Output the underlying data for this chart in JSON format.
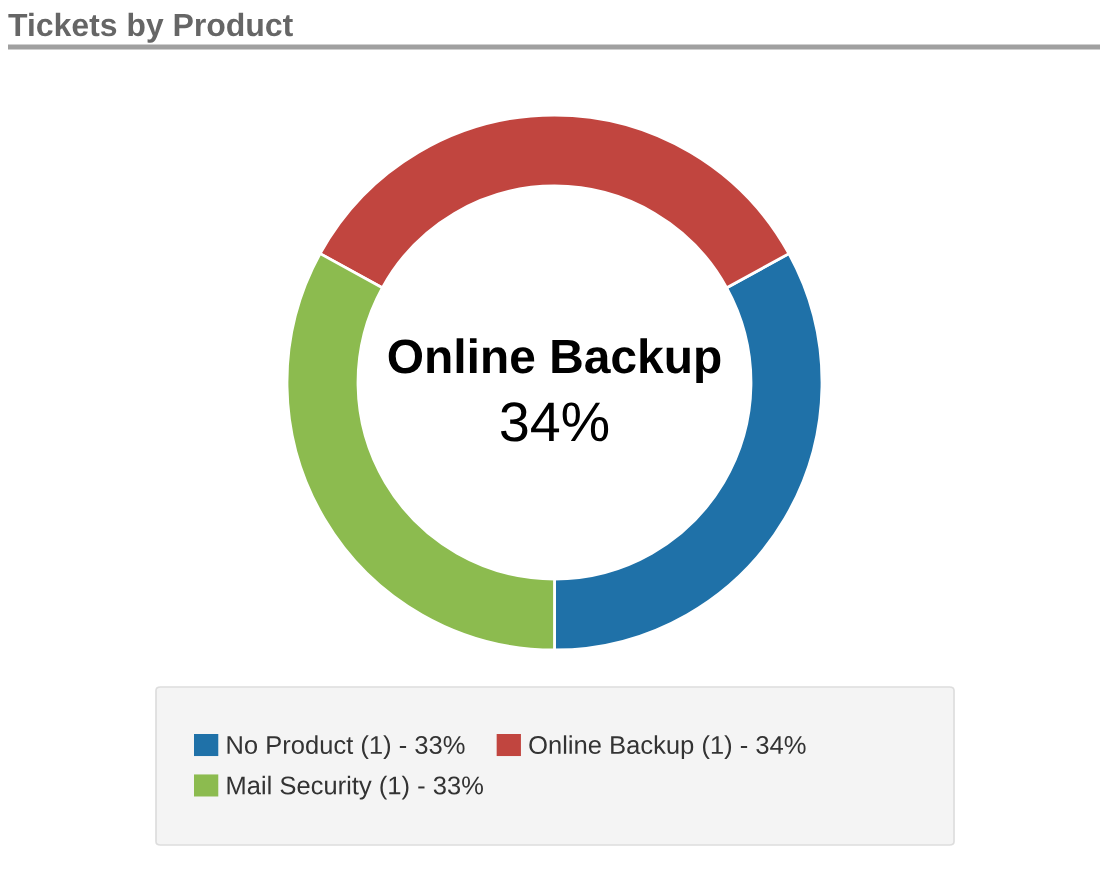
{
  "chart_data": {
    "type": "donut",
    "title": "Tickets by Product",
    "categories": [
      "No Product (1) - 33%",
      "Online Backup (1) - 34%",
      "Mail Security (1) - 33%"
    ],
    "values": [
      33,
      34,
      33
    ],
    "colors": [
      "#1f71a8",
      "#c1453f",
      "#8cbb4f"
    ],
    "annotations": [
      "Online Backup",
      "34%"
    ],
    "legend": "bottom"
  }
}
